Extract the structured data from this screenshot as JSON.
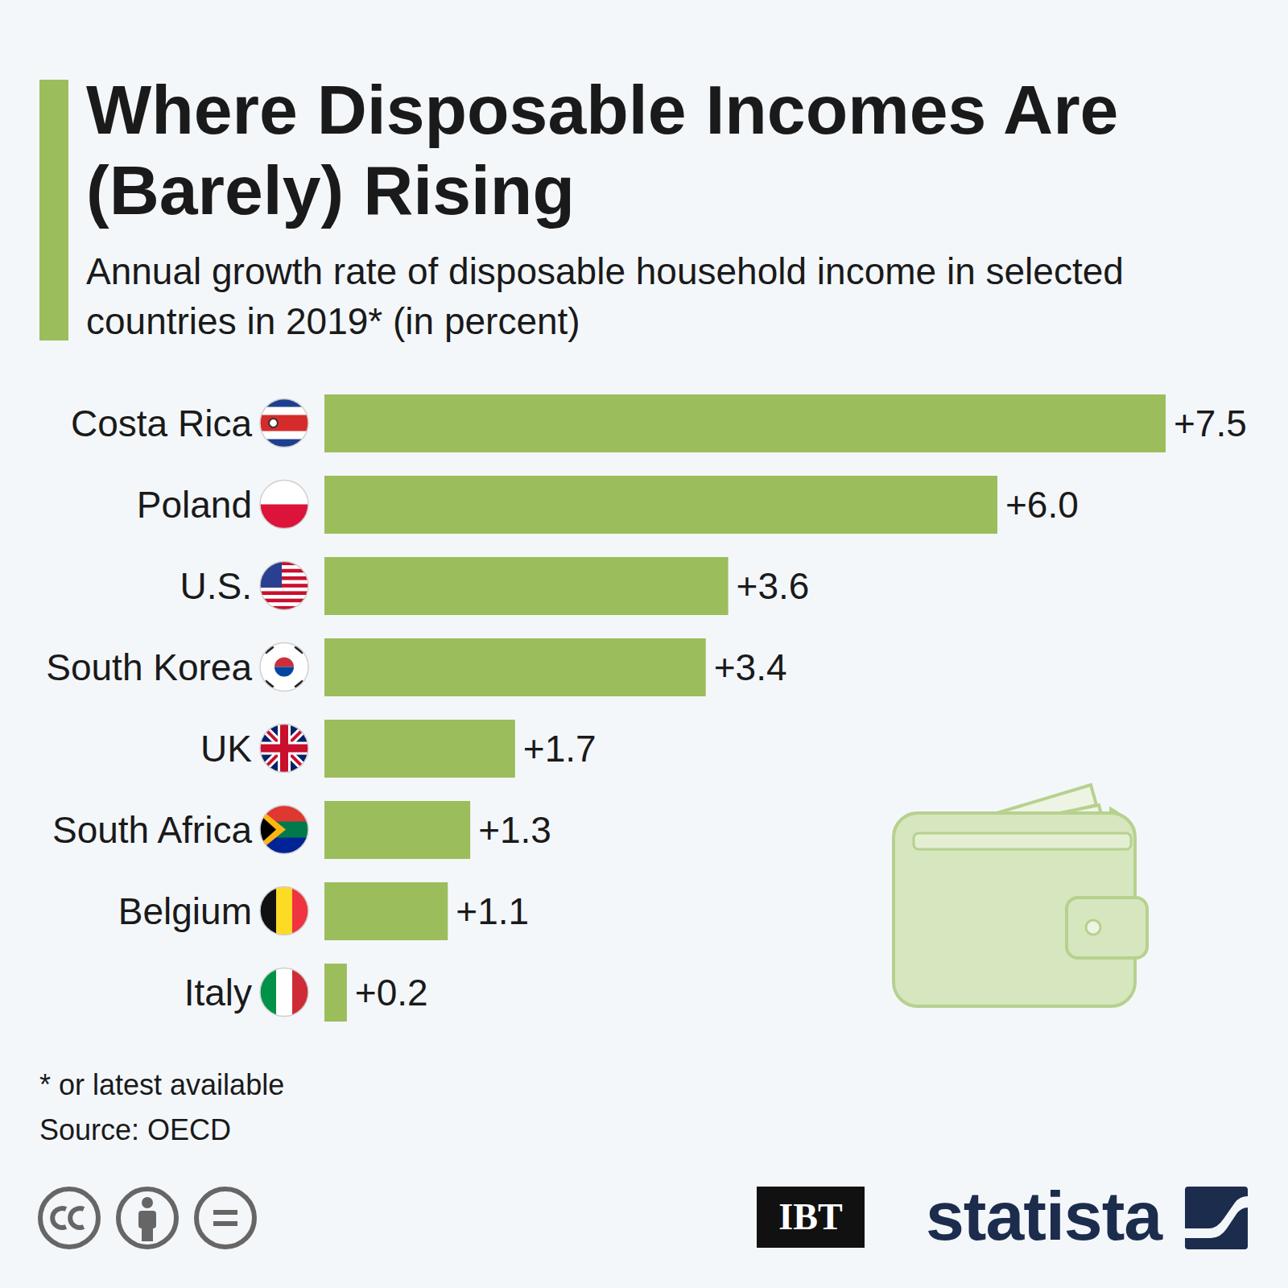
{
  "chart_data": {
    "type": "bar",
    "title": "Where Disposable Incomes Are (Barely) Rising",
    "subtitle": "Annual growth rate of disposable household income in selected countries in 2019* (in percent)",
    "categories": [
      "Costa Rica",
      "Poland",
      "U.S.",
      "South Korea",
      "UK",
      "South Africa",
      "Belgium",
      "Italy"
    ],
    "values": [
      7.5,
      6.0,
      3.6,
      3.4,
      1.7,
      1.3,
      1.1,
      0.2
    ],
    "value_labels": [
      "+7.5",
      "+6.0",
      "+3.6",
      "+3.4",
      "+1.7",
      "+1.3",
      "+1.1",
      "+0.2"
    ],
    "color": "#9bbd5c",
    "xlim": [
      0,
      7.5
    ],
    "orientation": "horizontal",
    "data_labels": true,
    "tick_labels": false,
    "grid": false,
    "footnote": "* or latest available",
    "source": "Source: OECD",
    "logos": [
      "IBT",
      "statista"
    ]
  }
}
